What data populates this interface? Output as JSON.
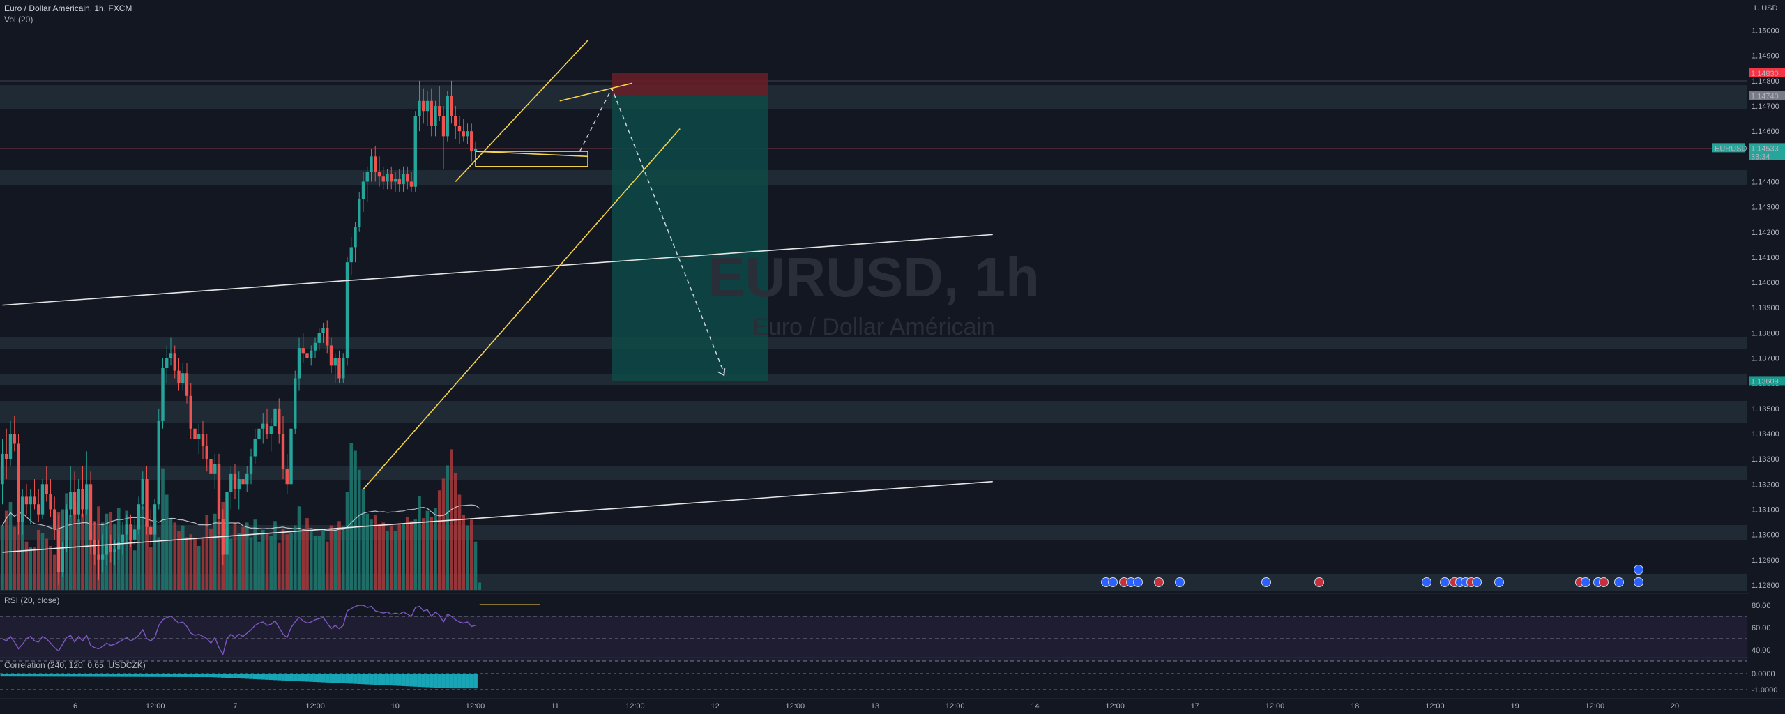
{
  "header": {
    "symbol_line": "Euro / Dollar Américain, 1h, FXCM",
    "vol_label": "Vol (20)",
    "rsi_label": "RSI (20, close)",
    "corr_label": "Correlation (240, 120, 0.65, USDCZK)"
  },
  "watermark": {
    "ticker": "EURUSD, 1h",
    "name": "Euro / Dollar Américain"
  },
  "price_axis": {
    "unit": "USD",
    "ticks": [
      "1.15000",
      "1.14900",
      "1.14800",
      "1.14700",
      "1.14600",
      "1.14500",
      "1.14400",
      "1.14300",
      "1.14200",
      "1.14100",
      "1.14000",
      "1.13900",
      "1.13800",
      "1.13700",
      "1.13600",
      "1.13500",
      "1.13400",
      "1.13300",
      "1.13200",
      "1.13100",
      "1.13000",
      "1.12900",
      "1.12800"
    ],
    "labels": {
      "stop": "1.14830",
      "entry": "1.14740",
      "current_symbol": "EURUSD",
      "current": "1.14533",
      "countdown": "33:34",
      "target": "1.13609"
    }
  },
  "time_axis": [
    "6",
    "12:00",
    "7",
    "12:00",
    "10",
    "12:00",
    "11",
    "12:00",
    "12",
    "12:00",
    "13",
    "12:00",
    "14",
    "12:00",
    "17",
    "12:00",
    "18",
    "12:00",
    "19",
    "12:00",
    "20"
  ],
  "rsi_axis": [
    "80.00",
    "60.00",
    "40.00"
  ],
  "corr_axis": [
    "0.0000",
    "-1.0000"
  ],
  "colors": {
    "background": "#131722",
    "up": "#26a69a",
    "down": "#ef5350",
    "trendline": "#f7d44a",
    "zone": "#2a3a44",
    "target_zone": "#0e4a48",
    "stop_zone": "#6a1f28"
  },
  "chart_data": {
    "type": "candlestick",
    "timeframe": "1h",
    "y_range": [
      1.1275,
      1.1509
    ],
    "ohlc": [
      [
        1.132,
        1.1338,
        1.1312,
        1.1332
      ],
      [
        1.1332,
        1.1342,
        1.1322,
        1.133
      ],
      [
        1.133,
        1.1345,
        1.1327,
        1.134
      ],
      [
        1.134,
        1.1347,
        1.1333,
        1.1336
      ],
      [
        1.1336,
        1.134,
        1.13,
        1.1305
      ],
      [
        1.1305,
        1.1318,
        1.13,
        1.1315
      ],
      [
        1.1315,
        1.132,
        1.1308,
        1.1312
      ],
      [
        1.1312,
        1.1318,
        1.1304,
        1.1315
      ],
      [
        1.1315,
        1.1322,
        1.131,
        1.1312
      ],
      [
        1.1312,
        1.1318,
        1.1305,
        1.1308
      ],
      [
        1.1308,
        1.1322,
        1.1306,
        1.132
      ],
      [
        1.132,
        1.1327,
        1.1313,
        1.1316
      ],
      [
        1.1316,
        1.1322,
        1.1307,
        1.131
      ],
      [
        1.131,
        1.1315,
        1.1298,
        1.1302
      ],
      [
        1.1302,
        1.1308,
        1.128,
        1.1285
      ],
      [
        1.1285,
        1.1297,
        1.1283,
        1.1295
      ],
      [
        1.1295,
        1.1312,
        1.1293,
        1.131
      ],
      [
        1.131,
        1.1327,
        1.1307,
        1.1317
      ],
      [
        1.1317,
        1.1325,
        1.1305,
        1.1308
      ],
      [
        1.1308,
        1.1322,
        1.1305,
        1.1318
      ],
      [
        1.1318,
        1.1327,
        1.1307,
        1.131
      ],
      [
        1.131,
        1.1333,
        1.1308,
        1.132
      ],
      [
        1.132,
        1.1325,
        1.1292,
        1.1298
      ],
      [
        1.1298,
        1.1305,
        1.1288,
        1.1292
      ],
      [
        1.1292,
        1.1298,
        1.1282,
        1.129
      ],
      [
        1.129,
        1.13,
        1.1285,
        1.1292
      ],
      [
        1.1292,
        1.1303,
        1.1288,
        1.1296
      ],
      [
        1.1296,
        1.13,
        1.1289,
        1.1293
      ],
      [
        1.1293,
        1.1298,
        1.1288,
        1.1294
      ],
      [
        1.1294,
        1.13,
        1.129,
        1.1297
      ],
      [
        1.1297,
        1.1305,
        1.1292,
        1.13
      ],
      [
        1.13,
        1.1308,
        1.1297,
        1.1304
      ],
      [
        1.1304,
        1.1308,
        1.1295,
        1.1298
      ],
      [
        1.1298,
        1.1306,
        1.1296,
        1.1302
      ],
      [
        1.1302,
        1.1315,
        1.13,
        1.1312
      ],
      [
        1.1312,
        1.1325,
        1.131,
        1.1322
      ],
      [
        1.1322,
        1.1327,
        1.13,
        1.1303
      ],
      [
        1.1303,
        1.131,
        1.1296,
        1.13
      ],
      [
        1.13,
        1.1314,
        1.1298,
        1.1312
      ],
      [
        1.1312,
        1.135,
        1.131,
        1.1345
      ],
      [
        1.1345,
        1.137,
        1.1342,
        1.1366
      ],
      [
        1.1366,
        1.1375,
        1.136,
        1.137
      ],
      [
        1.137,
        1.1378,
        1.1367,
        1.1372
      ],
      [
        1.1372,
        1.1375,
        1.1362,
        1.1365
      ],
      [
        1.1365,
        1.137,
        1.1357,
        1.136
      ],
      [
        1.136,
        1.1368,
        1.1357,
        1.1364
      ],
      [
        1.1364,
        1.1368,
        1.1352,
        1.1355
      ],
      [
        1.1355,
        1.136,
        1.1338,
        1.1342
      ],
      [
        1.1342,
        1.1347,
        1.1335,
        1.1338
      ],
      [
        1.1338,
        1.1344,
        1.1332,
        1.134
      ],
      [
        1.134,
        1.1345,
        1.133,
        1.1335
      ],
      [
        1.1335,
        1.134,
        1.1325,
        1.133
      ],
      [
        1.133,
        1.1336,
        1.1322,
        1.1324
      ],
      [
        1.1324,
        1.1332,
        1.1318,
        1.1328
      ],
      [
        1.1328,
        1.1332,
        1.13,
        1.1306
      ],
      [
        1.1306,
        1.131,
        1.1288,
        1.1292
      ],
      [
        1.1292,
        1.132,
        1.129,
        1.1317
      ],
      [
        1.1317,
        1.1327,
        1.131,
        1.1324
      ],
      [
        1.1324,
        1.1328,
        1.1314,
        1.1318
      ],
      [
        1.1318,
        1.1325,
        1.131,
        1.1322
      ],
      [
        1.1322,
        1.1326,
        1.1316,
        1.132
      ],
      [
        1.132,
        1.1327,
        1.1317,
        1.1324
      ],
      [
        1.1324,
        1.1334,
        1.132,
        1.1331
      ],
      [
        1.1331,
        1.1342,
        1.1328,
        1.1338
      ],
      [
        1.1338,
        1.1345,
        1.1334,
        1.1342
      ],
      [
        1.1342,
        1.1348,
        1.1336,
        1.1344
      ],
      [
        1.1344,
        1.135,
        1.1338,
        1.134
      ],
      [
        1.134,
        1.1346,
        1.1333,
        1.1343
      ],
      [
        1.1343,
        1.1352,
        1.134,
        1.135
      ],
      [
        1.135,
        1.1354,
        1.1336,
        1.134
      ],
      [
        1.134,
        1.1347,
        1.1322,
        1.1326
      ],
      [
        1.1326,
        1.1332,
        1.1316,
        1.132
      ],
      [
        1.132,
        1.1345,
        1.1315,
        1.1342
      ],
      [
        1.1342,
        1.1365,
        1.134,
        1.1362
      ],
      [
        1.1362,
        1.1378,
        1.1357,
        1.1374
      ],
      [
        1.1374,
        1.138,
        1.1368,
        1.1372
      ],
      [
        1.1372,
        1.1376,
        1.1366,
        1.137
      ],
      [
        1.137,
        1.1375,
        1.1367,
        1.1373
      ],
      [
        1.1373,
        1.1378,
        1.137,
        1.1376
      ],
      [
        1.1376,
        1.1382,
        1.1373,
        1.138
      ],
      [
        1.138,
        1.1384,
        1.1376,
        1.1382
      ],
      [
        1.1382,
        1.1385,
        1.1372,
        1.1375
      ],
      [
        1.1375,
        1.1378,
        1.1364,
        1.1367
      ],
      [
        1.1367,
        1.1372,
        1.136,
        1.137
      ],
      [
        1.137,
        1.1373,
        1.136,
        1.1362
      ],
      [
        1.1362,
        1.1372,
        1.136,
        1.137
      ],
      [
        1.137,
        1.141,
        1.1367,
        1.1408
      ],
      [
        1.1408,
        1.1418,
        1.1403,
        1.1414
      ],
      [
        1.1414,
        1.1424,
        1.1408,
        1.1422
      ],
      [
        1.1422,
        1.1436,
        1.142,
        1.1433
      ],
      [
        1.1433,
        1.1444,
        1.1428,
        1.144
      ],
      [
        1.144,
        1.1446,
        1.1432,
        1.1444
      ],
      [
        1.1444,
        1.1453,
        1.144,
        1.145
      ],
      [
        1.145,
        1.1454,
        1.144,
        1.1444
      ],
      [
        1.1444,
        1.145,
        1.1438,
        1.1442
      ],
      [
        1.1442,
        1.1446,
        1.1437,
        1.144
      ],
      [
        1.144,
        1.1445,
        1.1437,
        1.1443
      ],
      [
        1.1443,
        1.1446,
        1.1437,
        1.144
      ],
      [
        1.144,
        1.1444,
        1.1436,
        1.1441
      ],
      [
        1.1441,
        1.1445,
        1.1436,
        1.1439
      ],
      [
        1.1439,
        1.1446,
        1.1436,
        1.1443
      ],
      [
        1.1443,
        1.1446,
        1.1437,
        1.144
      ],
      [
        1.144,
        1.1444,
        1.1436,
        1.1438
      ],
      [
        1.1438,
        1.1468,
        1.1436,
        1.1466
      ],
      [
        1.1466,
        1.148,
        1.146,
        1.1472
      ],
      [
        1.1472,
        1.1477,
        1.1463,
        1.1468
      ],
      [
        1.1468,
        1.1476,
        1.1462,
        1.1472
      ],
      [
        1.1472,
        1.1477,
        1.1458,
        1.1462
      ],
      [
        1.1462,
        1.1472,
        1.1458,
        1.147
      ],
      [
        1.147,
        1.1478,
        1.1464,
        1.1466
      ],
      [
        1.1466,
        1.147,
        1.1445,
        1.1458
      ],
      [
        1.1458,
        1.1476,
        1.1456,
        1.1474
      ],
      [
        1.1474,
        1.148,
        1.1463,
        1.1466
      ],
      [
        1.1466,
        1.147,
        1.1457,
        1.1462
      ],
      [
        1.1462,
        1.1466,
        1.1455,
        1.146
      ],
      [
        1.146,
        1.1465,
        1.1456,
        1.1458
      ],
      [
        1.1458,
        1.1463,
        1.1455,
        1.146
      ],
      [
        1.146,
        1.1463,
        1.1448,
        1.1452
      ],
      [
        1.1452,
        1.1456,
        1.145,
        1.1453
      ]
    ],
    "volume": [
      44,
      54,
      60,
      43,
      60,
      55,
      33,
      29,
      29,
      41,
      39,
      35,
      30,
      24,
      53,
      55,
      66,
      51,
      60,
      48,
      52,
      55,
      39,
      47,
      57,
      46,
      52,
      53,
      45,
      56,
      35,
      54,
      37,
      27,
      52,
      57,
      47,
      29,
      49,
      36,
      83,
      65,
      49,
      46,
      40,
      44,
      36,
      38,
      35,
      30,
      36,
      51,
      42,
      52,
      47,
      60,
      42,
      35,
      46,
      39,
      43,
      46,
      36,
      48,
      33,
      41,
      39,
      37,
      47,
      32,
      42,
      38,
      39,
      44,
      57,
      42,
      49,
      40,
      37,
      37,
      41,
      33,
      44,
      42,
      47,
      43,
      67,
      100,
      95,
      82,
      69,
      52,
      48,
      51,
      45,
      46,
      40,
      44,
      40,
      45,
      45,
      50,
      47,
      48,
      64,
      49,
      54,
      50,
      56,
      68,
      76,
      85,
      96,
      80,
      65,
      51,
      44,
      48,
      33,
      5
    ],
    "rsi": [
      50,
      48,
      52,
      47,
      41,
      45,
      50,
      52,
      48,
      47,
      52,
      50,
      46,
      42,
      39,
      45,
      51,
      53,
      47,
      52,
      48,
      53,
      44,
      42,
      41,
      43,
      46,
      44,
      45,
      47,
      49,
      51,
      48,
      50,
      53,
      58,
      50,
      48,
      51,
      62,
      67,
      69,
      70,
      67,
      64,
      65,
      61,
      55,
      53,
      54,
      52,
      50,
      46,
      51,
      42,
      36,
      50,
      54,
      51,
      54,
      52,
      55,
      58,
      62,
      64,
      65,
      62,
      63,
      66,
      60,
      54,
      51,
      60,
      65,
      69,
      66,
      64,
      65,
      67,
      68,
      69,
      64,
      59,
      62,
      59,
      62,
      75,
      77,
      79,
      80,
      80,
      78,
      79,
      75,
      74,
      73,
      74,
      72,
      73,
      72,
      74,
      72,
      70,
      78,
      79,
      75,
      76,
      70,
      74,
      71,
      65,
      72,
      70,
      67,
      65,
      64,
      65,
      61,
      62
    ],
    "correlation_base": [
      -0.22,
      -0.3
    ],
    "trendlines": [
      {
        "p1": [
          0,
          1.1391
        ],
        "p2": [
          247,
          1.1419
        ]
      },
      {
        "p1": [
          0,
          1.1293
        ],
        "p2": [
          247,
          1.1321
        ]
      },
      {
        "p1": [
          90,
          1.1318
        ],
        "p2": [
          169,
          1.1461
        ]
      },
      {
        "p1": [
          113,
          1.144
        ],
        "p2": [
          146,
          1.1496
        ]
      },
      {
        "p1": [
          139,
          1.1472
        ],
        "p2": [
          157,
          1.1479
        ]
      },
      {
        "p1": [
          118,
          1.1452
        ],
        "p2": [
          146,
          1.145
        ]
      }
    ],
    "trade": {
      "x_start": 152,
      "x_end": 191,
      "stop": 1.1483,
      "entry": 1.1474,
      "target": 1.13609,
      "path": [
        [
          144,
          1.1452
        ],
        [
          152,
          1.1477
        ],
        [
          180,
          1.1364
        ]
      ]
    },
    "current_price": 1.14533
  }
}
